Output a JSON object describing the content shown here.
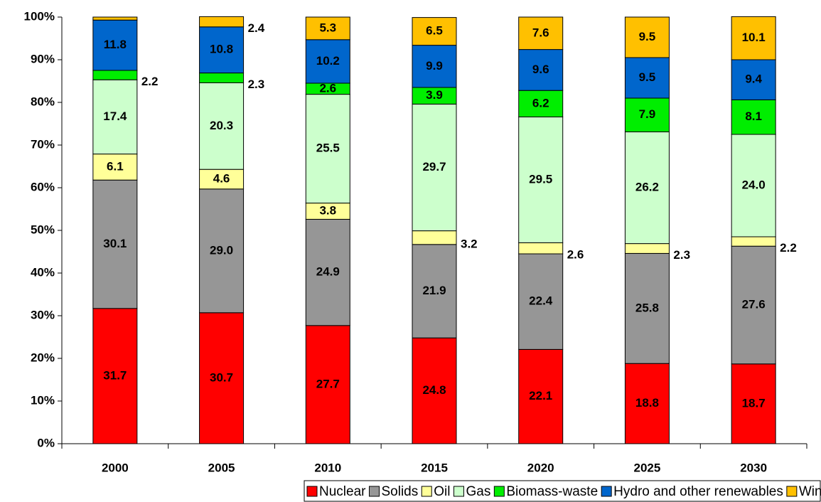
{
  "chart_data": {
    "type": "stacked_bar",
    "categories": [
      "2000",
      "2005",
      "2010",
      "2015",
      "2020",
      "2025",
      "2030"
    ],
    "series": [
      {
        "name": "Nuclear",
        "color": "#ff0000",
        "values": [
          31.7,
          30.7,
          27.7,
          24.8,
          22.1,
          18.8,
          18.7
        ]
      },
      {
        "name": "Solids",
        "color": "#969696",
        "values": [
          30.1,
          29.0,
          24.9,
          21.9,
          22.4,
          25.8,
          27.6
        ],
        "value_labels": [
          "30.1",
          "29.0",
          "24.9",
          "21.9",
          "22.4",
          "25.8",
          "27.6"
        ]
      },
      {
        "name": "Oil",
        "color": "#ffff99",
        "values": [
          6.1,
          4.6,
          3.8,
          3.2,
          2.6,
          2.3,
          2.2
        ]
      },
      {
        "name": "Gas",
        "color": "#ccffcc",
        "values": [
          17.4,
          20.3,
          25.5,
          29.7,
          29.5,
          26.2,
          24.0
        ],
        "value_labels": [
          "17.4",
          "20.3",
          "25.5",
          "29.7",
          "29.5",
          "26.2",
          "24.0"
        ]
      },
      {
        "name": "Biomass-waste",
        "color": "#00ee00",
        "values": [
          2.2,
          2.3,
          2.6,
          3.9,
          6.2,
          7.9,
          8.1
        ]
      },
      {
        "name": "Hydro and other renewables",
        "color": "#0066cc",
        "values": [
          11.8,
          10.8,
          10.2,
          9.9,
          9.6,
          9.5,
          9.4
        ]
      },
      {
        "name": "Wind energy",
        "color": "#ffc000",
        "values": [
          0.7,
          2.4,
          5.3,
          6.5,
          7.6,
          9.5,
          10.1
        ],
        "value_labels": [
          null,
          "2.4",
          "5.3",
          "6.5",
          "7.6",
          "9.5",
          "10.1"
        ]
      }
    ],
    "ylim": [
      0,
      100
    ],
    "yticks": [
      {
        "value": 0,
        "label": "0%"
      },
      {
        "value": 10,
        "label": "10%"
      },
      {
        "value": 20,
        "label": "20%"
      },
      {
        "value": 30,
        "label": "30%"
      },
      {
        "value": 40,
        "label": "40%"
      },
      {
        "value": 50,
        "label": "50%"
      },
      {
        "value": 60,
        "label": "60%"
      },
      {
        "value": 70,
        "label": "70%"
      },
      {
        "value": 80,
        "label": "80%"
      },
      {
        "value": 90,
        "label": "90%"
      },
      {
        "value": 100,
        "label": "100%"
      }
    ],
    "grid": false,
    "legend": "bottom"
  }
}
